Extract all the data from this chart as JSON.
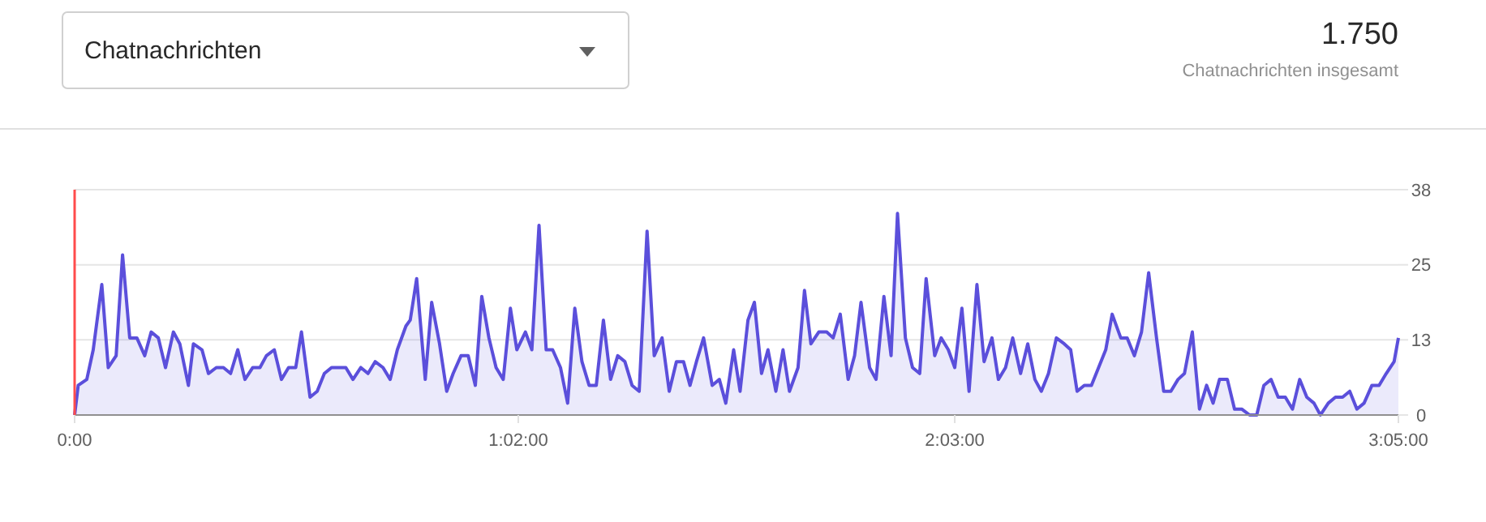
{
  "chart_data": {
    "type": "area",
    "title": "Chatnachrichten",
    "annotations": [
      "1.750",
      "Chatnachrichten insgesamt"
    ],
    "x": [
      0,
      0.5,
      1.7,
      2.6,
      3.8,
      4.7,
      5.8,
      6.7,
      7.7,
      8.7,
      9.8,
      10.7,
      11.7,
      12.7,
      13.8,
      14.7,
      15.9,
      16.6,
      17.8,
      18.7,
      19.8,
      20.8,
      21.8,
      22.8,
      23.8,
      24.9,
      25.9,
      26.8,
      27.9,
      28.9,
      29.9,
      30.9,
      31.7,
      32.9,
      33.9,
      34.9,
      35.9,
      36.9,
      37.9,
      38.9,
      40.0,
      41.0,
      42.0,
      43.1,
      44.1,
      45.1,
      46.3,
      46.9,
      47.8,
      49.0,
      49.9,
      51.0,
      52.0,
      52.9,
      54.0,
      55.0,
      56.0,
      56.9,
      57.9,
      58.9,
      59.9,
      60.9,
      61.8,
      63.0,
      63.9,
      64.9,
      65.9,
      66.8,
      67.9,
      68.9,
      69.9,
      70.9,
      71.9,
      72.9,
      73.9,
      74.9,
      75.9,
      76.9,
      77.9,
      78.9,
      80.0,
      81.0,
      82.1,
      83.1,
      84.1,
      85.1,
      86.0,
      86.9,
      87.9,
      89.1,
      90.1,
      91.0,
      92.1,
      93.0,
      94.1,
      95.0,
      96.0,
      96.9,
      98.0,
      99.0,
      99.9,
      101.1,
      102.0,
      102.9,
      104.0,
      105.1,
      106.0,
      107.0,
      108.1,
      109.0,
      109.9,
      111.1,
      112.0,
      113.1,
      114.1,
      115.0,
      116.1,
      117.1,
      118.1,
      119.0,
      120.2,
      121.1,
      122.1,
      123.0,
      124.0,
      125.0,
      126.1,
      127.1,
      128.2,
      129.1,
      130.1,
      131.1,
      132.2,
      133.2,
      134.2,
      135.1,
      136.1,
      137.2,
      138.3,
      139.2,
      140.1,
      141.1,
      142.1,
      143.1,
      144.1,
      145.0,
      146.2,
      147.1,
      148.1,
      149.1,
      150.1,
      151.2,
      152.2,
      153.2,
      154.2,
      155.1,
      156.2,
      157.2,
      158.2,
      159.1,
      160.0,
      161.1,
      162.1,
      163.1,
      164.2,
      165.2,
      166.2,
      167.2,
      168.2,
      169.2,
      170.2,
      171.2,
      172.2,
      173.2,
      174.1,
      175.2,
      176.2,
      177.2,
      178.2,
      179.2,
      180.2,
      181.3,
      182.3,
      183.3,
      184.4,
      185
    ],
    "values": [
      0,
      5,
      6,
      11,
      22,
      8,
      10,
      27,
      13,
      13,
      10,
      14,
      13,
      8,
      14,
      12,
      5,
      12,
      11,
      7,
      8,
      8,
      7,
      11,
      6,
      8,
      8,
      10,
      11,
      6,
      8,
      8,
      14,
      3,
      4,
      7,
      8,
      8,
      8,
      6,
      8,
      7,
      9,
      8,
      6,
      11,
      15,
      16,
      23,
      6,
      19,
      12,
      4,
      7,
      10,
      10,
      5,
      20,
      13,
      8,
      6,
      18,
      11,
      14,
      11,
      32,
      11,
      11,
      8,
      2,
      18,
      9,
      5,
      5,
      16,
      6,
      10,
      9,
      5,
      4,
      31,
      10,
      13,
      4,
      9,
      9,
      5,
      9,
      13,
      5,
      6,
      2,
      11,
      4,
      16,
      19,
      7,
      11,
      4,
      11,
      4,
      8,
      21,
      12,
      14,
      14,
      13,
      17,
      6,
      10,
      19,
      8,
      6,
      20,
      10,
      34,
      13,
      8,
      7,
      23,
      10,
      13,
      11,
      8,
      18,
      4,
      22,
      9,
      13,
      6,
      8,
      13,
      7,
      12,
      6,
      4,
      7,
      13,
      12,
      11,
      4,
      5,
      5,
      8,
      11,
      17,
      13,
      13,
      10,
      14,
      24,
      13,
      4,
      4,
      6,
      7,
      14,
      1,
      5,
      2,
      6,
      6,
      1,
      1,
      0,
      0,
      5,
      6,
      3,
      3,
      1,
      6,
      3,
      2,
      0,
      2,
      3,
      3,
      4,
      1,
      2,
      5,
      5,
      7,
      9,
      13
    ],
    "color": "#5b4fdb",
    "xlim": [
      0,
      185
    ],
    "xticks": [
      {
        "value": 0,
        "label": "0:00"
      },
      {
        "value": 62,
        "label": "1:02:00"
      },
      {
        "value": 123,
        "label": "2:03:00"
      },
      {
        "value": 185,
        "label": "3:05:00"
      }
    ],
    "ylim": [
      0,
      38
    ],
    "yticks": [
      0,
      {
        "value": 12.67,
        "label": "13"
      },
      {
        "value": 25.33,
        "label": "25"
      },
      38
    ],
    "grid": "y",
    "ref_lines": [
      {
        "axis": "x",
        "value": 0,
        "color": "#ff4c4c"
      }
    ]
  }
}
